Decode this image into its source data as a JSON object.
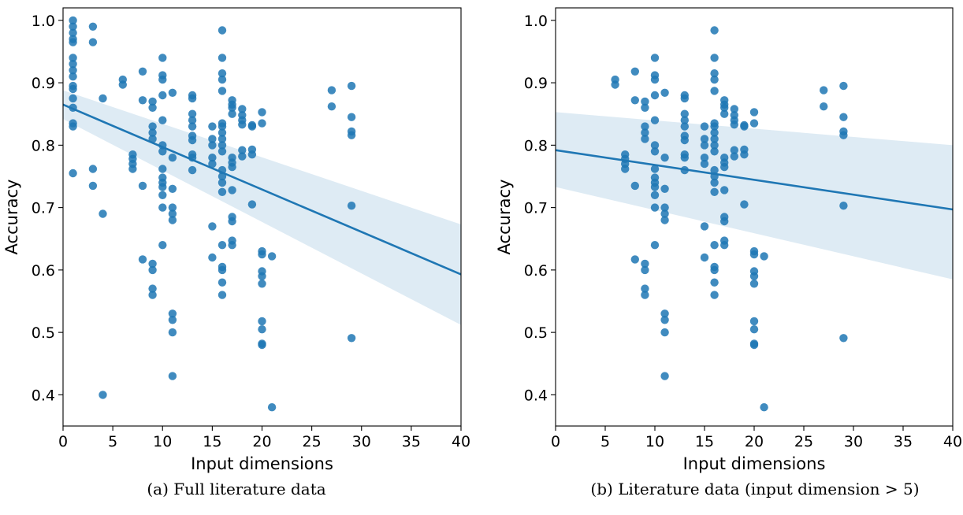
{
  "chart_data": [
    {
      "type": "scatter",
      "caption": "(a) Full literature data",
      "xlabel": "Input dimensions",
      "ylabel": "Accuracy",
      "xlim": [
        0,
        40
      ],
      "ylim": [
        0.35,
        1.02
      ],
      "xticks": [
        "0",
        "5",
        "10",
        "15",
        "20",
        "25",
        "30",
        "35",
        "40"
      ],
      "yticks": [
        "0.4",
        "0.5",
        "0.6",
        "0.7",
        "0.8",
        "0.9",
        "1.0"
      ],
      "grid": false,
      "point_color": "#1f77b4",
      "regression": {
        "x": [
          0,
          40
        ],
        "y": [
          0.865,
          0.593
        ],
        "ci_low_end": [
          0.842,
          0.512
        ],
        "ci_high_end": [
          0.888,
          0.673
        ]
      },
      "points": [
        [
          1,
          1.0
        ],
        [
          1,
          0.99
        ],
        [
          1,
          0.98
        ],
        [
          1,
          0.97
        ],
        [
          1,
          0.965
        ],
        [
          1,
          0.94
        ],
        [
          1,
          0.93
        ],
        [
          1,
          0.92
        ],
        [
          1,
          0.91
        ],
        [
          1,
          0.895
        ],
        [
          1,
          0.89
        ],
        [
          1,
          0.875
        ],
        [
          1,
          0.86
        ],
        [
          1,
          0.835
        ],
        [
          1,
          0.83
        ],
        [
          1,
          0.755
        ],
        [
          3,
          0.99
        ],
        [
          3,
          0.965
        ],
        [
          3,
          0.762
        ],
        [
          3,
          0.735
        ],
        [
          4,
          0.875
        ],
        [
          4,
          0.69
        ],
        [
          4,
          0.4
        ],
        [
          6,
          0.905
        ],
        [
          6,
          0.897
        ],
        [
          7,
          0.785
        ],
        [
          7,
          0.778
        ],
        [
          7,
          0.77
        ],
        [
          7,
          0.762
        ],
        [
          8,
          0.918
        ],
        [
          8,
          0.872
        ],
        [
          8,
          0.735
        ],
        [
          8,
          0.617
        ],
        [
          9,
          0.87
        ],
        [
          9,
          0.86
        ],
        [
          9,
          0.83
        ],
        [
          9,
          0.82
        ],
        [
          9,
          0.81
        ],
        [
          9,
          0.61
        ],
        [
          9,
          0.6
        ],
        [
          9,
          0.57
        ],
        [
          9,
          0.56
        ],
        [
          10,
          0.94
        ],
        [
          10,
          0.912
        ],
        [
          10,
          0.905
        ],
        [
          10,
          0.88
        ],
        [
          10,
          0.84
        ],
        [
          10,
          0.8
        ],
        [
          10,
          0.79
        ],
        [
          10,
          0.762
        ],
        [
          10,
          0.748
        ],
        [
          10,
          0.74
        ],
        [
          10,
          0.733
        ],
        [
          10,
          0.72
        ],
        [
          10,
          0.7
        ],
        [
          10,
          0.64
        ],
        [
          11,
          0.884
        ],
        [
          11,
          0.78
        ],
        [
          11,
          0.73
        ],
        [
          11,
          0.7
        ],
        [
          11,
          0.69
        ],
        [
          11,
          0.68
        ],
        [
          11,
          0.53
        ],
        [
          11,
          0.52
        ],
        [
          11,
          0.5
        ],
        [
          11,
          0.43
        ],
        [
          13,
          0.88
        ],
        [
          13,
          0.875
        ],
        [
          13,
          0.85
        ],
        [
          13,
          0.84
        ],
        [
          13,
          0.83
        ],
        [
          13,
          0.815
        ],
        [
          13,
          0.808
        ],
        [
          13,
          0.785
        ],
        [
          13,
          0.78
        ],
        [
          13,
          0.76
        ],
        [
          15,
          0.83
        ],
        [
          15,
          0.81
        ],
        [
          15,
          0.8
        ],
        [
          15,
          0.78
        ],
        [
          15,
          0.77
        ],
        [
          15,
          0.67
        ],
        [
          15,
          0.62
        ],
        [
          16,
          0.984
        ],
        [
          16,
          0.94
        ],
        [
          16,
          0.915
        ],
        [
          16,
          0.905
        ],
        [
          16,
          0.887
        ],
        [
          16,
          0.835
        ],
        [
          16,
          0.83
        ],
        [
          16,
          0.82
        ],
        [
          16,
          0.81
        ],
        [
          16,
          0.8
        ],
        [
          16,
          0.79
        ],
        [
          16,
          0.76
        ],
        [
          16,
          0.75
        ],
        [
          16,
          0.74
        ],
        [
          16,
          0.725
        ],
        [
          16,
          0.64
        ],
        [
          16,
          0.605
        ],
        [
          16,
          0.6
        ],
        [
          16,
          0.58
        ],
        [
          16,
          0.56
        ],
        [
          17,
          0.872
        ],
        [
          17,
          0.865
        ],
        [
          17,
          0.86
        ],
        [
          17,
          0.85
        ],
        [
          17,
          0.78
        ],
        [
          17,
          0.772
        ],
        [
          17,
          0.765
        ],
        [
          17,
          0.728
        ],
        [
          17,
          0.685
        ],
        [
          17,
          0.678
        ],
        [
          17,
          0.647
        ],
        [
          17,
          0.64
        ],
        [
          18,
          0.858
        ],
        [
          18,
          0.848
        ],
        [
          18,
          0.84
        ],
        [
          18,
          0.833
        ],
        [
          18,
          0.792
        ],
        [
          18,
          0.782
        ],
        [
          19,
          0.832
        ],
        [
          19,
          0.83
        ],
        [
          19,
          0.793
        ],
        [
          19,
          0.785
        ],
        [
          19,
          0.705
        ],
        [
          20,
          0.853
        ],
        [
          20,
          0.835
        ],
        [
          20,
          0.63
        ],
        [
          20,
          0.625
        ],
        [
          20,
          0.598
        ],
        [
          20,
          0.59
        ],
        [
          20,
          0.578
        ],
        [
          20,
          0.518
        ],
        [
          20,
          0.505
        ],
        [
          20,
          0.482
        ],
        [
          20,
          0.48
        ],
        [
          21,
          0.622
        ],
        [
          21,
          0.38
        ],
        [
          27,
          0.888
        ],
        [
          27,
          0.862
        ],
        [
          29,
          0.895
        ],
        [
          29,
          0.845
        ],
        [
          29,
          0.822
        ],
        [
          29,
          0.816
        ],
        [
          29,
          0.703
        ],
        [
          29,
          0.491
        ]
      ]
    },
    {
      "type": "scatter",
      "caption": "(b) Literature data (input dimension > 5)",
      "xlabel": "Input dimensions",
      "ylabel": "Accuracy",
      "xlim": [
        0,
        40
      ],
      "ylim": [
        0.35,
        1.02
      ],
      "xticks": [
        "0",
        "5",
        "10",
        "15",
        "20",
        "25",
        "30",
        "35",
        "40"
      ],
      "yticks": [
        "0.4",
        "0.5",
        "0.6",
        "0.7",
        "0.8",
        "0.9",
        "1.0"
      ],
      "grid": false,
      "point_color": "#1f77b4",
      "regression": {
        "x": [
          0,
          40
        ],
        "y": [
          0.792,
          0.697
        ],
        "ci_low_end": [
          0.733,
          0.585
        ],
        "ci_high_end": [
          0.853,
          0.8
        ]
      },
      "points": [
        [
          6,
          0.905
        ],
        [
          6,
          0.897
        ],
        [
          7,
          0.785
        ],
        [
          7,
          0.778
        ],
        [
          7,
          0.77
        ],
        [
          7,
          0.762
        ],
        [
          8,
          0.918
        ],
        [
          8,
          0.872
        ],
        [
          8,
          0.735
        ],
        [
          8,
          0.617
        ],
        [
          9,
          0.87
        ],
        [
          9,
          0.86
        ],
        [
          9,
          0.83
        ],
        [
          9,
          0.82
        ],
        [
          9,
          0.81
        ],
        [
          9,
          0.61
        ],
        [
          9,
          0.6
        ],
        [
          9,
          0.57
        ],
        [
          9,
          0.56
        ],
        [
          10,
          0.94
        ],
        [
          10,
          0.912
        ],
        [
          10,
          0.905
        ],
        [
          10,
          0.88
        ],
        [
          10,
          0.84
        ],
        [
          10,
          0.8
        ],
        [
          10,
          0.79
        ],
        [
          10,
          0.762
        ],
        [
          10,
          0.748
        ],
        [
          10,
          0.74
        ],
        [
          10,
          0.733
        ],
        [
          10,
          0.72
        ],
        [
          10,
          0.7
        ],
        [
          10,
          0.64
        ],
        [
          11,
          0.884
        ],
        [
          11,
          0.78
        ],
        [
          11,
          0.73
        ],
        [
          11,
          0.7
        ],
        [
          11,
          0.69
        ],
        [
          11,
          0.68
        ],
        [
          11,
          0.53
        ],
        [
          11,
          0.52
        ],
        [
          11,
          0.5
        ],
        [
          11,
          0.43
        ],
        [
          13,
          0.88
        ],
        [
          13,
          0.875
        ],
        [
          13,
          0.85
        ],
        [
          13,
          0.84
        ],
        [
          13,
          0.83
        ],
        [
          13,
          0.815
        ],
        [
          13,
          0.808
        ],
        [
          13,
          0.785
        ],
        [
          13,
          0.78
        ],
        [
          13,
          0.76
        ],
        [
          15,
          0.83
        ],
        [
          15,
          0.81
        ],
        [
          15,
          0.8
        ],
        [
          15,
          0.78
        ],
        [
          15,
          0.77
        ],
        [
          15,
          0.67
        ],
        [
          15,
          0.62
        ],
        [
          16,
          0.984
        ],
        [
          16,
          0.94
        ],
        [
          16,
          0.915
        ],
        [
          16,
          0.905
        ],
        [
          16,
          0.887
        ],
        [
          16,
          0.835
        ],
        [
          16,
          0.83
        ],
        [
          16,
          0.82
        ],
        [
          16,
          0.81
        ],
        [
          16,
          0.8
        ],
        [
          16,
          0.79
        ],
        [
          16,
          0.76
        ],
        [
          16,
          0.75
        ],
        [
          16,
          0.74
        ],
        [
          16,
          0.725
        ],
        [
          16,
          0.64
        ],
        [
          16,
          0.605
        ],
        [
          16,
          0.6
        ],
        [
          16,
          0.58
        ],
        [
          16,
          0.56
        ],
        [
          17,
          0.872
        ],
        [
          17,
          0.865
        ],
        [
          17,
          0.86
        ],
        [
          17,
          0.85
        ],
        [
          17,
          0.78
        ],
        [
          17,
          0.772
        ],
        [
          17,
          0.765
        ],
        [
          17,
          0.728
        ],
        [
          17,
          0.685
        ],
        [
          17,
          0.678
        ],
        [
          17,
          0.647
        ],
        [
          17,
          0.64
        ],
        [
          18,
          0.858
        ],
        [
          18,
          0.848
        ],
        [
          18,
          0.84
        ],
        [
          18,
          0.833
        ],
        [
          18,
          0.792
        ],
        [
          18,
          0.782
        ],
        [
          19,
          0.832
        ],
        [
          19,
          0.83
        ],
        [
          19,
          0.793
        ],
        [
          19,
          0.785
        ],
        [
          19,
          0.705
        ],
        [
          20,
          0.853
        ],
        [
          20,
          0.835
        ],
        [
          20,
          0.63
        ],
        [
          20,
          0.625
        ],
        [
          20,
          0.598
        ],
        [
          20,
          0.59
        ],
        [
          20,
          0.578
        ],
        [
          20,
          0.518
        ],
        [
          20,
          0.505
        ],
        [
          20,
          0.482
        ],
        [
          20,
          0.48
        ],
        [
          21,
          0.622
        ],
        [
          21,
          0.38
        ],
        [
          27,
          0.888
        ],
        [
          27,
          0.862
        ],
        [
          29,
          0.895
        ],
        [
          29,
          0.845
        ],
        [
          29,
          0.822
        ],
        [
          29,
          0.816
        ],
        [
          29,
          0.703
        ],
        [
          29,
          0.491
        ]
      ]
    }
  ]
}
